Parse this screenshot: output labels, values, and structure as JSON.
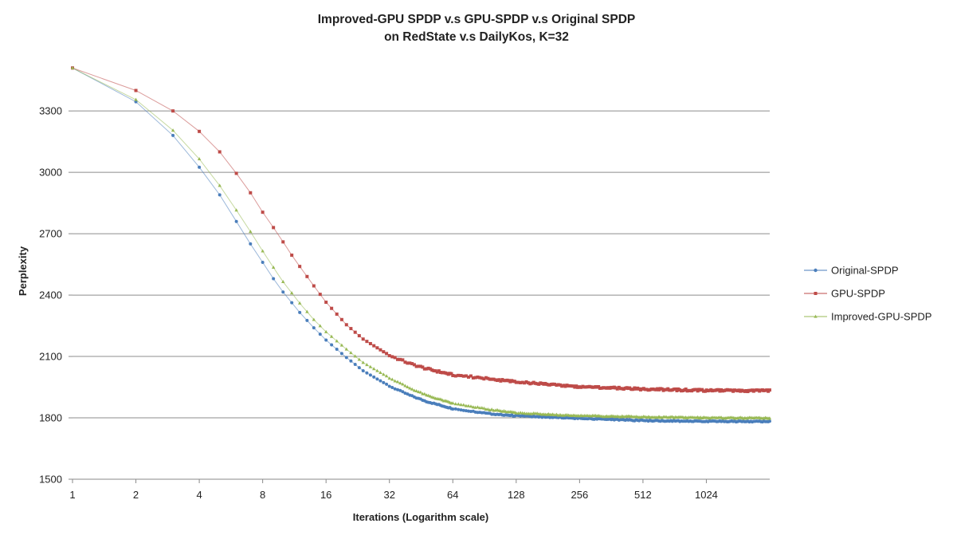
{
  "chart_data": {
    "type": "line",
    "title": "Improved-GPU SPDP v.s  GPU-SPDP v.s Original SPDP",
    "subtitle": "on RedState v.s DailyKos, K=32",
    "xlabel": "Iterations (Logarithm scale)",
    "ylabel": "Perplexity",
    "x_scale": "log2",
    "xlim": [
      1,
      2048
    ],
    "ylim": [
      1500,
      3550
    ],
    "x_ticks": [
      1,
      2,
      4,
      8,
      16,
      32,
      64,
      128,
      256,
      512,
      1024
    ],
    "x_tick_labels": [
      "1",
      "2",
      "4",
      "8",
      "16",
      "32",
      "64",
      "128",
      "256",
      "512",
      "1024"
    ],
    "y_ticks": [
      1500,
      1800,
      2100,
      2400,
      2700,
      3000,
      3300
    ],
    "y_tick_labels": [
      "1500",
      "1800",
      "2100",
      "2400",
      "2700",
      "3000",
      "3300"
    ],
    "grid": "horizontal",
    "legend_position": "right",
    "series": [
      {
        "name": "Original-SPDP",
        "color": "#4a7ebb",
        "marker": "circle",
        "anchors": [
          [
            1,
            3510
          ],
          [
            2,
            3345
          ],
          [
            3,
            3180
          ],
          [
            4,
            3025
          ],
          [
            5,
            2890
          ],
          [
            6,
            2760
          ],
          [
            7,
            2650
          ],
          [
            8,
            2560
          ],
          [
            9,
            2480
          ],
          [
            10,
            2415
          ],
          [
            12,
            2315
          ],
          [
            14,
            2240
          ],
          [
            16,
            2180
          ],
          [
            20,
            2095
          ],
          [
            24,
            2030
          ],
          [
            32,
            1955
          ],
          [
            40,
            1910
          ],
          [
            48,
            1880
          ],
          [
            64,
            1845
          ],
          [
            96,
            1820
          ],
          [
            128,
            1810
          ],
          [
            192,
            1803
          ],
          [
            256,
            1797
          ],
          [
            400,
            1790
          ],
          [
            512,
            1787
          ],
          [
            800,
            1784
          ],
          [
            1024,
            1783
          ],
          [
            2048,
            1782
          ]
        ]
      },
      {
        "name": "GPU-SPDP",
        "color": "#be4b48",
        "marker": "square",
        "anchors": [
          [
            1,
            3510
          ],
          [
            2,
            3400
          ],
          [
            3,
            3300
          ],
          [
            4,
            3200
          ],
          [
            5,
            3100
          ],
          [
            6,
            2995
          ],
          [
            7,
            2900
          ],
          [
            8,
            2805
          ],
          [
            9,
            2730
          ],
          [
            10,
            2660
          ],
          [
            11,
            2595
          ],
          [
            12,
            2540
          ],
          [
            14,
            2445
          ],
          [
            16,
            2365
          ],
          [
            20,
            2255
          ],
          [
            24,
            2185
          ],
          [
            32,
            2105
          ],
          [
            40,
            2065
          ],
          [
            48,
            2040
          ],
          [
            64,
            2010
          ],
          [
            96,
            1990
          ],
          [
            128,
            1975
          ],
          [
            192,
            1962
          ],
          [
            256,
            1952
          ],
          [
            512,
            1940
          ],
          [
            1024,
            1934
          ],
          [
            2048,
            1932
          ]
        ]
      },
      {
        "name": "Improved-GPU-SPDP",
        "color": "#98b954",
        "marker": "triangle",
        "anchors": [
          [
            1,
            3510
          ],
          [
            2,
            3355
          ],
          [
            3,
            3205
          ],
          [
            4,
            3065
          ],
          [
            5,
            2935
          ],
          [
            6,
            2815
          ],
          [
            7,
            2710
          ],
          [
            8,
            2615
          ],
          [
            9,
            2535
          ],
          [
            10,
            2465
          ],
          [
            12,
            2360
          ],
          [
            14,
            2280
          ],
          [
            16,
            2220
          ],
          [
            20,
            2135
          ],
          [
            24,
            2070
          ],
          [
            32,
            1995
          ],
          [
            40,
            1945
          ],
          [
            48,
            1910
          ],
          [
            64,
            1870
          ],
          [
            96,
            1840
          ],
          [
            128,
            1825
          ],
          [
            192,
            1815
          ],
          [
            256,
            1810
          ],
          [
            512,
            1804
          ],
          [
            1024,
            1800
          ],
          [
            2048,
            1798
          ]
        ]
      }
    ]
  }
}
